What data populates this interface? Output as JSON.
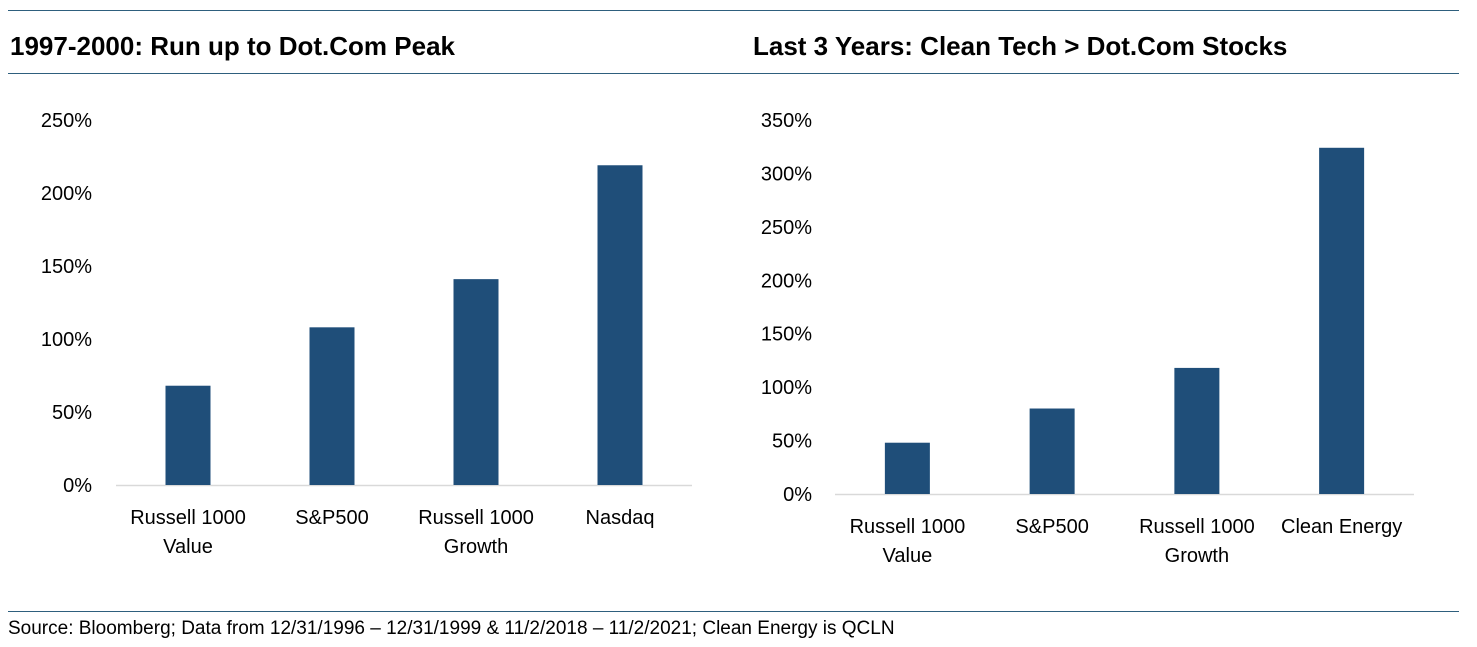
{
  "panels": [
    {
      "title": "1997-2000: Run up to Dot.Com Peak"
    },
    {
      "title": "Last 3 Years: Clean Tech > Dot.Com Stocks"
    }
  ],
  "source": "Source: Bloomberg; Data from 12/31/1996 – 12/31/1999 & 11/2/2018 – 11/2/2021; Clean Energy is QCLN",
  "colors": {
    "bar": "#1f4e79",
    "rule": "#2e5f7d",
    "axis": "#d9d9d9"
  },
  "chart_data": [
    {
      "type": "bar",
      "title": "1997-2000: Run up to Dot.Com Peak",
      "categories": [
        [
          "Russell 1000",
          "Value"
        ],
        [
          "S&P500"
        ],
        [
          "Russell 1000",
          "Growth"
        ],
        [
          "Nasdaq"
        ]
      ],
      "values": [
        68,
        108,
        141,
        219
      ],
      "value_unit": "%",
      "ylim": [
        0,
        250
      ],
      "yticks": [
        0,
        50,
        100,
        150,
        200,
        250
      ],
      "ytick_labels": [
        "0%",
        "50%",
        "100%",
        "150%",
        "200%",
        "250%"
      ],
      "grid": false
    },
    {
      "type": "bar",
      "title": "Last 3 Years: Clean Tech > Dot.Com Stocks",
      "categories": [
        [
          "Russell 1000",
          "Value"
        ],
        [
          "S&P500"
        ],
        [
          "Russell 1000",
          "Growth"
        ],
        [
          "Clean Energy"
        ]
      ],
      "values": [
        48,
        80,
        118,
        324
      ],
      "value_unit": "%",
      "ylim": [
        0,
        350
      ],
      "yticks": [
        0,
        50,
        100,
        150,
        200,
        250,
        300,
        350
      ],
      "ytick_labels": [
        "0%",
        "50%",
        "100%",
        "150%",
        "200%",
        "250%",
        "300%",
        "350%"
      ],
      "grid": false
    }
  ]
}
